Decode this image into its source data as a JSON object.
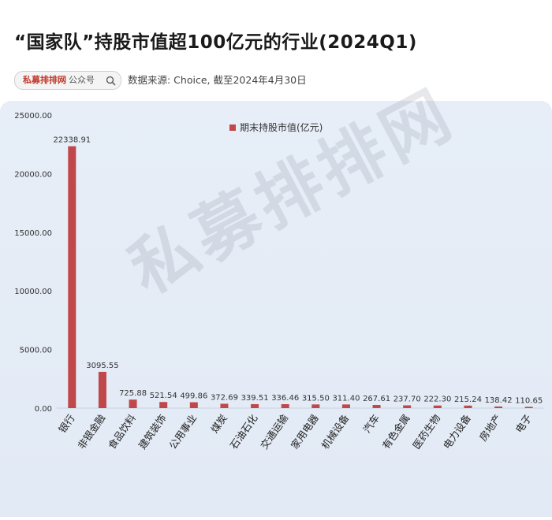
{
  "header": {
    "title": "“国家队”持股市值超100亿元的行业(2024Q1)",
    "search_brand": "私募排排网",
    "search_suffix": "公众号",
    "source": "数据来源: Choice, 截至2024年4月30日"
  },
  "watermark": "私募排排网",
  "chart_data": {
    "type": "bar",
    "title": "",
    "xlabel": "",
    "ylabel": "",
    "ylim": [
      0,
      25000
    ],
    "yticks": [
      0,
      5000,
      10000,
      15000,
      20000,
      25000
    ],
    "ytick_labels": [
      "0.00",
      "5000.00",
      "10000.00",
      "15000.00",
      "20000.00",
      "25000.00"
    ],
    "legend_position": "top-center",
    "grid": false,
    "bar_color": "#c0474a",
    "categories": [
      "银行",
      "非银金融",
      "食品饮料",
      "建筑装饰",
      "公用事业",
      "煤炭",
      "石油石化",
      "交通运输",
      "家用电器",
      "机械设备",
      "汽车",
      "有色金属",
      "医药生物",
      "电力设备",
      "房地产",
      "电子"
    ],
    "series": [
      {
        "name": "期末持股市值(亿元)",
        "values": [
          22338.91,
          3095.55,
          725.88,
          521.54,
          499.86,
          372.69,
          339.51,
          336.46,
          315.5,
          311.4,
          267.61,
          237.7,
          222.3,
          215.24,
          138.42,
          110.65
        ],
        "labels": [
          "22338.91",
          "3095.55",
          "725.88",
          "521.54",
          "499.86",
          "372.69",
          "339.51",
          "336.46",
          "315.50",
          "311.40",
          "267.61",
          "237.70",
          "222.30",
          "215.24",
          "138.42",
          "110.65"
        ]
      }
    ]
  }
}
